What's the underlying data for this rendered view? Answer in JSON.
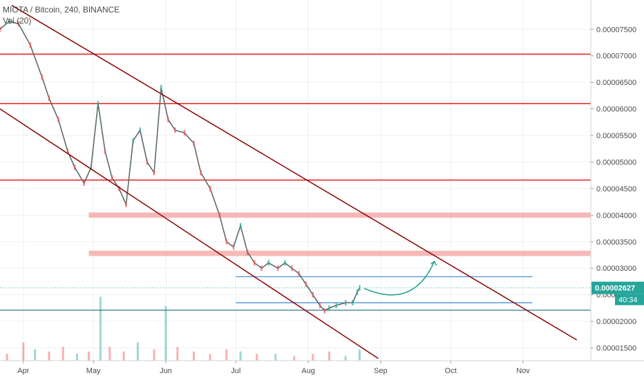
{
  "header": {
    "symbol": "MIOTA / Bitcoin, 240, BINANCE",
    "volume_label": "Vol (20)"
  },
  "colors": {
    "up": "#26a69a",
    "down": "#ef5350",
    "channel": "#8b0000",
    "resistance": "#e81b1b",
    "zone": "#f4a0a0",
    "blue_line": "#4a90d9",
    "support": "#2b7a8c",
    "arrow": "#1f9e89",
    "badge": "#26a69a",
    "axis_text": "#4a4a4a"
  },
  "chart_data": {
    "type": "line",
    "title": "",
    "xlabel": "",
    "ylabel": "",
    "x_ticks": [
      "Apr",
      "May",
      "Jun",
      "Jul",
      "Aug",
      "Sep",
      "Oct",
      "Nov"
    ],
    "x_range": [
      "2019-03-22",
      "2019-11-30"
    ],
    "y_ticks": [
      "0.00001500",
      "0.00002000",
      "0.00002500",
      "0.00003000",
      "0.00003500",
      "0.00004000",
      "0.00004500",
      "0.00005000",
      "0.00005500",
      "0.00006000",
      "0.00006500",
      "0.00007000",
      "0.00007500"
    ],
    "ylim": [
      1.26e-05,
      8.05e-05
    ],
    "current_price": "0.00002627",
    "countdown": "40:34",
    "series": [
      {
        "type": "line",
        "x": [
          "2019-03-22",
          "2019-03-26",
          "2019-03-30",
          "2019-04-04",
          "2019-04-09",
          "2019-04-12",
          "2019-04-16",
          "2019-04-20",
          "2019-04-23",
          "2019-04-27",
          "2019-04-30",
          "2019-05-03",
          "2019-05-06",
          "2019-05-09",
          "2019-05-12",
          "2019-05-15",
          "2019-05-18",
          "2019-05-21",
          "2019-05-24",
          "2019-05-27",
          "2019-05-30",
          "2019-06-02",
          "2019-06-05",
          "2019-06-09",
          "2019-06-13",
          "2019-06-16",
          "2019-06-20",
          "2019-06-24",
          "2019-06-27",
          "2019-06-30",
          "2019-07-03",
          "2019-07-06",
          "2019-07-09",
          "2019-07-12",
          "2019-07-15",
          "2019-07-19",
          "2019-07-22",
          "2019-07-25",
          "2019-07-28",
          "2019-07-31",
          "2019-08-03",
          "2019-08-06",
          "2019-08-08",
          "2019-08-10",
          "2019-08-13",
          "2019-08-17",
          "2019-08-20",
          "2019-08-22",
          "2019-08-23"
        ],
        "values": [
          7.5e-05,
          7.65e-05,
          7.6e-05,
          7.2e-05,
          6.6e-05,
          6.2e-05,
          5.8e-05,
          5.2e-05,
          4.9e-05,
          4.6e-05,
          4.9e-05,
          6.1e-05,
          5.2e-05,
          4.7e-05,
          4.5e-05,
          4.2e-05,
          5.4e-05,
          5.6e-05,
          5e-05,
          4.8e-05,
          6.4e-05,
          5.8e-05,
          5.6e-05,
          5.55e-05,
          5.35e-05,
          4.8e-05,
          4.5e-05,
          4e-05,
          3.5e-05,
          3.4e-05,
          3.8e-05,
          3.3e-05,
          3.1e-05,
          3e-05,
          3.1e-05,
          3e-05,
          3.1e-05,
          3e-05,
          2.9e-05,
          2.7e-05,
          2.5e-05,
          2.3e-05,
          2.2e-05,
          2.25e-05,
          2.3e-05,
          2.35e-05,
          2.35e-05,
          2.55e-05,
          2.63e-05
        ]
      }
    ],
    "volume": [
      {
        "x": "2019-03-25",
        "v": 3,
        "dir": "down"
      },
      {
        "x": "2019-04-01",
        "v": 8,
        "dir": "down"
      },
      {
        "x": "2019-04-06",
        "v": 5,
        "dir": "up"
      },
      {
        "x": "2019-04-12",
        "v": 4,
        "dir": "down"
      },
      {
        "x": "2019-04-18",
        "v": 6,
        "dir": "down"
      },
      {
        "x": "2019-04-24",
        "v": 3,
        "dir": "up"
      },
      {
        "x": "2019-04-29",
        "v": 4,
        "dir": "down"
      },
      {
        "x": "2019-05-04",
        "v": 28,
        "dir": "up"
      },
      {
        "x": "2019-05-08",
        "v": 6,
        "dir": "down"
      },
      {
        "x": "2019-05-14",
        "v": 4,
        "dir": "down"
      },
      {
        "x": "2019-05-20",
        "v": 8,
        "dir": "up"
      },
      {
        "x": "2019-05-27",
        "v": 5,
        "dir": "down"
      },
      {
        "x": "2019-06-01",
        "v": 24,
        "dir": "up"
      },
      {
        "x": "2019-06-06",
        "v": 6,
        "dir": "down"
      },
      {
        "x": "2019-06-13",
        "v": 4,
        "dir": "down"
      },
      {
        "x": "2019-06-20",
        "v": 3,
        "dir": "down"
      },
      {
        "x": "2019-06-27",
        "v": 5,
        "dir": "down"
      },
      {
        "x": "2019-07-03",
        "v": 4,
        "dir": "up"
      },
      {
        "x": "2019-07-10",
        "v": 3,
        "dir": "down"
      },
      {
        "x": "2019-07-18",
        "v": 3,
        "dir": "up"
      },
      {
        "x": "2019-07-26",
        "v": 2,
        "dir": "down"
      },
      {
        "x": "2019-08-03",
        "v": 3,
        "dir": "down"
      },
      {
        "x": "2019-08-10",
        "v": 4,
        "dir": "down"
      },
      {
        "x": "2019-08-17",
        "v": 2,
        "dir": "up"
      },
      {
        "x": "2019-08-23",
        "v": 5,
        "dir": "up"
      }
    ],
    "annotations": {
      "channel_upper": [
        [
          "2019-03-27",
          7.95e-05
        ],
        [
          "2019-11-24",
          1.65e-05
        ]
      ],
      "channel_lower": [
        [
          "2019-03-22",
          6e-05
        ],
        [
          "2019-08-31",
          1.3e-05
        ]
      ],
      "resistance_levels": [
        7.03e-05,
        6.1e-05,
        4.66e-05
      ],
      "zones": [
        {
          "from": "2019-04-29",
          "to": "2019-11-30",
          "low": 3.95e-05,
          "high": 4.05e-05
        },
        {
          "from": "2019-04-29",
          "to": "2019-11-30",
          "low": 3.23e-05,
          "high": 3.33e-05
        }
      ],
      "blue_lines": [
        {
          "from": "2019-07-01",
          "to": "2019-11-05",
          "y": 2.84e-05
        },
        {
          "from": "2019-07-01",
          "to": "2019-11-05",
          "y": 2.35e-05
        }
      ],
      "support_line": {
        "from": "2019-03-22",
        "to": "2019-11-30",
        "y": 2.21e-05
      },
      "dotted_price_line": 2.63e-05,
      "arrow": {
        "from": [
          "2019-08-25",
          2.62e-05
        ],
        "ctrl": [
          "2019-09-15",
          2.22e-05
        ],
        "to": [
          "2019-09-24",
          3.13e-05
        ]
      }
    }
  }
}
